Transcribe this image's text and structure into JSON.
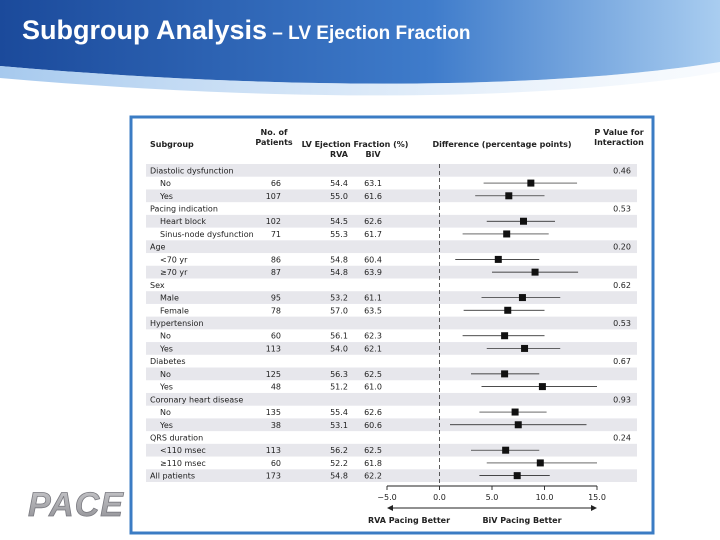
{
  "slide": {
    "title_main": "Subgroup Analysis",
    "title_sub": " – LV Ejection Fraction",
    "logo_text": "PACE"
  },
  "colors": {
    "header_dark": "#1f4fa0",
    "header_light": "#7fb0e4",
    "frame": "#3b7cc4",
    "stripe": "#e7e7ec",
    "marker": "#111111"
  },
  "chart_data": {
    "type": "forest",
    "headers": {
      "subgroup": "Subgroup",
      "patients_line1": "No. of",
      "patients_line2": "Patients",
      "lvef": "LV Ejection Fraction (%)",
      "rva": "RVA",
      "biv": "BiV",
      "difference": "Difference (percentage points)",
      "p_line1": "P Value for",
      "p_line2": "Interaction"
    },
    "rows": [
      {
        "label": "Diastolic dysfunction",
        "group": true,
        "p": "0.46"
      },
      {
        "label": "No",
        "n": "66",
        "rva": "54.4",
        "biv": "63.1",
        "est": 8.7,
        "lo": 4.2,
        "hi": 13.1
      },
      {
        "label": "Yes",
        "n": "107",
        "rva": "55.0",
        "biv": "61.6",
        "est": 6.6,
        "lo": 3.4,
        "hi": 10.0
      },
      {
        "label": "Pacing indication",
        "group": true,
        "p": "0.53"
      },
      {
        "label": "Heart block",
        "n": "102",
        "rva": "54.5",
        "biv": "62.6",
        "est": 8.0,
        "lo": 4.5,
        "hi": 11.0
      },
      {
        "label": "Sinus-node dysfunction",
        "n": "71",
        "rva": "55.3",
        "biv": "61.7",
        "est": 6.4,
        "lo": 2.2,
        "hi": 10.4
      },
      {
        "label": "Age",
        "group": true,
        "p": "0.20"
      },
      {
        "label": "<70 yr",
        "n": "86",
        "rva": "54.8",
        "biv": "60.4",
        "est": 5.6,
        "lo": 1.5,
        "hi": 9.5
      },
      {
        "label": "≥70 yr",
        "n": "87",
        "rva": "54.8",
        "biv": "63.9",
        "est": 9.1,
        "lo": 5.0,
        "hi": 13.2
      },
      {
        "label": "Sex",
        "group": true,
        "p": "0.62"
      },
      {
        "label": "Male",
        "n": "95",
        "rva": "53.2",
        "biv": "61.1",
        "est": 7.9,
        "lo": 4.0,
        "hi": 11.5
      },
      {
        "label": "Female",
        "n": "78",
        "rva": "57.0",
        "biv": "63.5",
        "est": 6.5,
        "lo": 2.3,
        "hi": 10.0
      },
      {
        "label": "Hypertension",
        "group": true,
        "p": "0.53"
      },
      {
        "label": "No",
        "n": "60",
        "rva": "56.1",
        "biv": "62.3",
        "est": 6.2,
        "lo": 2.2,
        "hi": 10.0
      },
      {
        "label": "Yes",
        "n": "113",
        "rva": "54.0",
        "biv": "62.1",
        "est": 8.1,
        "lo": 4.5,
        "hi": 11.5
      },
      {
        "label": "Diabetes",
        "group": true,
        "p": "0.67"
      },
      {
        "label": "No",
        "n": "125",
        "rva": "56.3",
        "biv": "62.5",
        "est": 6.2,
        "lo": 3.0,
        "hi": 9.5
      },
      {
        "label": "Yes",
        "n": "48",
        "rva": "51.2",
        "biv": "61.0",
        "est": 9.8,
        "lo": 4.0,
        "hi": 15.0
      },
      {
        "label": "Coronary heart disease",
        "group": true,
        "p": "0.93"
      },
      {
        "label": "No",
        "n": "135",
        "rva": "55.4",
        "biv": "62.6",
        "est": 7.2,
        "lo": 3.8,
        "hi": 10.2
      },
      {
        "label": "Yes",
        "n": "38",
        "rva": "53.1",
        "biv": "60.6",
        "est": 7.5,
        "lo": 1.0,
        "hi": 14.0
      },
      {
        "label": "QRS duration",
        "group": true,
        "p": "0.24"
      },
      {
        "label": "<110 msec",
        "n": "113",
        "rva": "56.2",
        "biv": "62.5",
        "est": 6.3,
        "lo": 3.0,
        "hi": 9.5
      },
      {
        "label": "≥110 msec",
        "n": "60",
        "rva": "52.2",
        "biv": "61.8",
        "est": 9.6,
        "lo": 4.5,
        "hi": 15.0
      },
      {
        "label": "All patients",
        "n": "173",
        "rva": "54.8",
        "biv": "62.2",
        "est": 7.4,
        "lo": 3.8,
        "hi": 10.5
      }
    ],
    "xlim": [
      -5.0,
      15.0
    ],
    "xticks": [
      "−5.0",
      "0.0",
      "5.0",
      "10.0",
      "15.0"
    ],
    "xtick_values": [
      -5,
      0,
      5,
      10,
      15
    ],
    "reference_line": 0,
    "left_label": "RVA Pacing Better",
    "right_label": "BiV Pacing Better"
  }
}
